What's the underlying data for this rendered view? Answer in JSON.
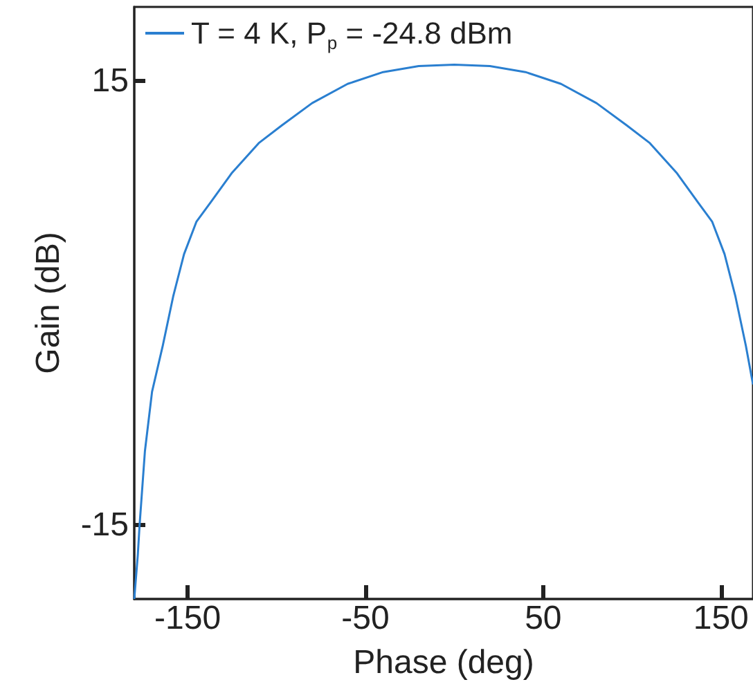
{
  "chart_data": {
    "type": "line",
    "xlabel": "Phase (deg)",
    "ylabel": "Gain (dB)",
    "x": [
      -180,
      -178,
      -177,
      -174,
      -170,
      -164,
      -158,
      -152,
      -145,
      -137,
      -125,
      -110,
      -97,
      -80,
      -60,
      -40,
      -20,
      0,
      20,
      40,
      60,
      80,
      97,
      110,
      125,
      137,
      145,
      152,
      158,
      164,
      168
    ],
    "series": [
      {
        "name": "T = 4 K, P$_{p}$ = -24.8 dBm",
        "color": "#2a7fd0",
        "values": [
          -20,
          -17,
          -15,
          -10,
          -6,
          -2.9,
          0.5,
          3.3,
          5.5,
          6.8,
          8.8,
          10.8,
          12,
          13.5,
          14.8,
          15.6,
          16,
          16.1,
          16,
          15.6,
          14.8,
          13.5,
          12,
          10.8,
          8.8,
          6.8,
          5.5,
          3.3,
          0.5,
          -2.9,
          -5.5
        ]
      }
    ],
    "xlim": [
      -180,
      168
    ],
    "ylim": [
      -20,
      20
    ],
    "xticks": [
      -150,
      -50,
      50,
      150
    ],
    "yticks": [
      15,
      -15
    ],
    "legend": "top left"
  }
}
